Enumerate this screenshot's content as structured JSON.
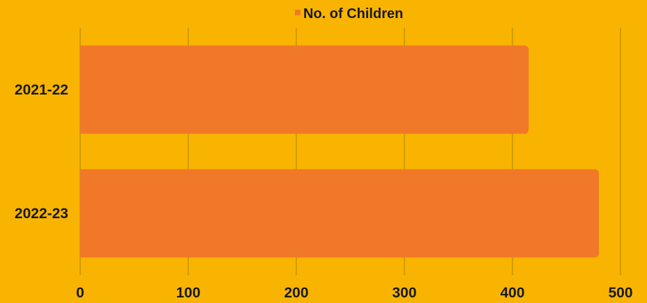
{
  "chart_data": {
    "type": "bar",
    "orientation": "horizontal",
    "categories": [
      "2021-22",
      "2022-23"
    ],
    "series": [
      {
        "name": "No. of Children",
        "values": [
          415,
          480
        ]
      }
    ],
    "xlim": [
      0,
      500
    ],
    "x_ticks": [
      0,
      100,
      200,
      300,
      400,
      500
    ],
    "x_tick_labels": [
      "0",
      "100",
      "200",
      "300",
      "400",
      "500"
    ],
    "grid": true,
    "legend": "top-center",
    "colors": {
      "background": "#F8B400",
      "bar": "#F07828",
      "gridline": "#A88400",
      "text": "#1a1a1a"
    }
  }
}
